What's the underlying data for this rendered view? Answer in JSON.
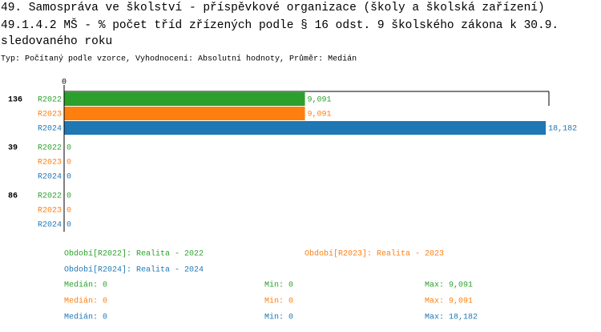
{
  "chart_data": {
    "type": "bar",
    "orientation": "horizontal",
    "title": [
      "49. Samospráva ve školství - příspěvkové organizace (školy a školská zařízení)",
      "49.1.4.2 MŠ - % počet tříd zřízených podle § 16 odst. 9 školského zákona k 30.9.",
      "sledovaného roku"
    ],
    "subtitle": "Typ: Počítaný podle vzorce, Vyhodnocení: Absolutní hodnoty, Průměr: Medián",
    "categories": [
      "136",
      "39",
      "86"
    ],
    "xlim": [
      0,
      18300
    ],
    "xticks": [
      0
    ],
    "series": [
      {
        "name": "R2022",
        "color": "#2ca02c",
        "values": [
          9091,
          0,
          0
        ],
        "value_labels": [
          "9,091",
          "0",
          "0"
        ],
        "legend_label": "Období[R2022]: Realita - 2022",
        "stats": [
          "Medián: 0",
          "Min: 0",
          "Max: 9,091"
        ]
      },
      {
        "name": "R2023",
        "color": "#ff7f0e",
        "values": [
          9091,
          0,
          0
        ],
        "value_labels": [
          "9,091",
          "0",
          "0"
        ],
        "legend_label": "Období[R2023]: Realita - 2023",
        "stats": [
          "Medián: 0",
          "Min: 0",
          "Max: 9,091"
        ]
      },
      {
        "name": "R2024",
        "color": "#1f77b4",
        "values": [
          18182,
          0,
          0
        ],
        "value_labels": [
          "18,182",
          "0",
          "0"
        ],
        "legend_label": "Období[R2024]: Realita - 2024",
        "stats": [
          "Medián: 0",
          "Min: 0",
          "Max: 18,182"
        ]
      }
    ]
  }
}
